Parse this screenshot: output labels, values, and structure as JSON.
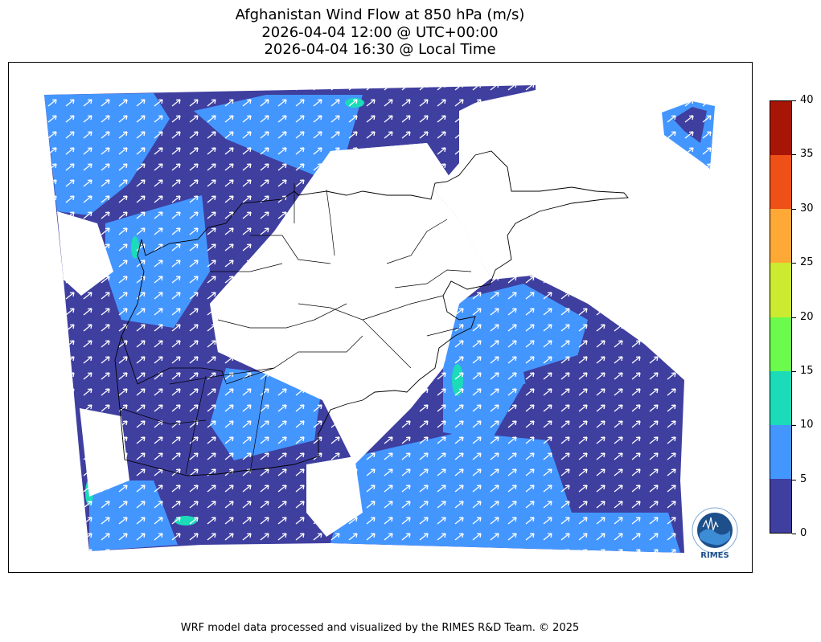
{
  "title": {
    "line1": "Afghanistan Wind Flow at 850 hPa (m/s)",
    "line2": "2026-04-04 12:00 @ UTC+00:00",
    "line3": "2026-04-04 16:30 @ Local Time"
  },
  "colorbar": {
    "ticks": [
      "0",
      "5",
      "10",
      "15",
      "20",
      "25",
      "30",
      "35",
      "40"
    ],
    "colors": [
      "#3f3fa0",
      "#4496ff",
      "#1bdbb9",
      "#6bfb4c",
      "#ccea30",
      "#fea936",
      "#ee5018",
      "#a61506"
    ]
  },
  "legend": {
    "palette": {
      "low": "#3f3fa0",
      "mid": "#4496ff",
      "high": "#1bdbb9",
      "arrow": "#ffffff"
    }
  },
  "logo": {
    "text": "RIMES"
  },
  "footer": "WRF model data processed and visualized by the RIMES R&D Team. © 2025"
}
